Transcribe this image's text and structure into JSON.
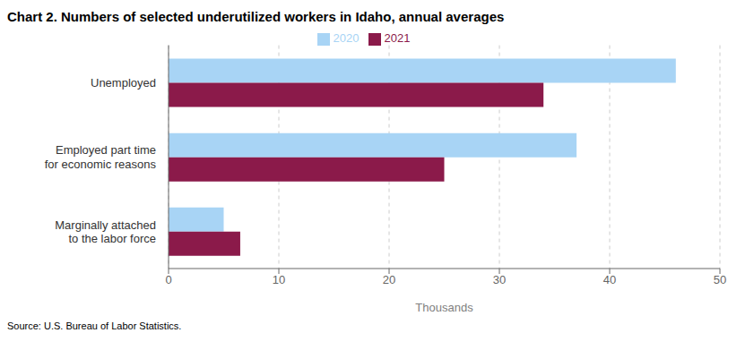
{
  "chart_data": {
    "type": "bar",
    "orientation": "horizontal",
    "title": "Chart 2. Numbers of selected underutilized workers in Idaho, annual averages",
    "categories": [
      "Unemployed",
      "Employed part time\nfor economic reasons",
      "Marginally attached\nto the labor force"
    ],
    "series": [
      {
        "name": "2020",
        "color": "#a8d4f5",
        "values": [
          46,
          37,
          5
        ]
      },
      {
        "name": "2021",
        "color": "#8b1a4a",
        "values": [
          34,
          25,
          6.5
        ]
      }
    ],
    "xlabel": "Thousands",
    "xlim": [
      0,
      50
    ],
    "xticks": [
      0,
      10,
      20,
      30,
      40,
      50
    ],
    "grid": true,
    "legend": "top",
    "annotations": [
      "Source: U.S. Bureau of Labor Statistics."
    ]
  }
}
